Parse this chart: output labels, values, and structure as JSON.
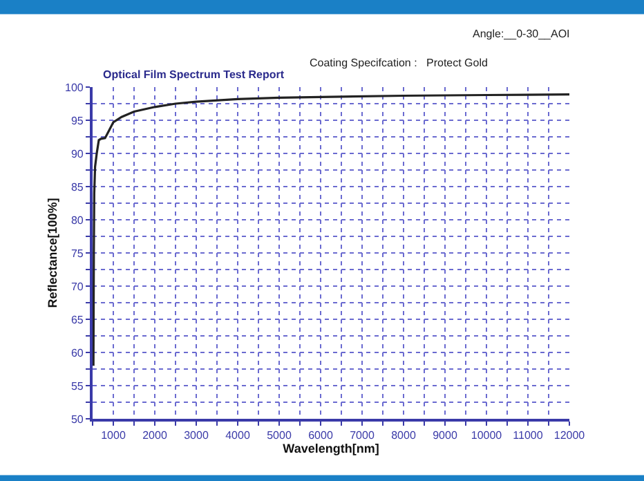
{
  "chart_data": {
    "type": "line",
    "title": "Optical Film Spectrum Test Report",
    "xlabel": "Wavelength[nm]",
    "ylabel": "Reflectance[100%]",
    "annotations": [
      "Angle:__0-30__AOI",
      "Coating Specifcation :   Protect Gold"
    ],
    "x": [
      520,
      530,
      540,
      560,
      600,
      650,
      700,
      800,
      900,
      1000,
      1200,
      1500,
      2000,
      2500,
      3000,
      4000,
      5000,
      6000,
      8000,
      10000,
      12000
    ],
    "series": [
      {
        "color": "#222222",
        "values": [
          58,
          75,
          84,
          88,
          90,
          92,
          92.2,
          92.3,
          93.5,
          94.7,
          95.5,
          96.3,
          97,
          97.5,
          97.8,
          98.2,
          98.4,
          98.5,
          98.7,
          98.8,
          98.9
        ]
      }
    ],
    "xlim": [
      500,
      12000
    ],
    "ylim": [
      50,
      100
    ],
    "xticks": [
      {
        "value": 500,
        "label": null
      },
      1000,
      {
        "value": 1500,
        "label": null
      },
      2000,
      {
        "value": 2500,
        "label": null
      },
      3000,
      {
        "value": 3500,
        "label": null
      },
      4000,
      {
        "value": 4500,
        "label": null
      },
      5000,
      {
        "value": 5500,
        "label": null
      },
      6000,
      {
        "value": 6500,
        "label": null
      },
      7000,
      {
        "value": 7500,
        "label": null
      },
      8000,
      {
        "value": 8500,
        "label": null
      },
      9000,
      {
        "value": 9500,
        "label": null
      },
      10000,
      {
        "value": 10500,
        "label": null
      },
      11000,
      {
        "value": 11500,
        "label": null
      },
      12000
    ],
    "yticks": [
      50,
      {
        "value": 52.5,
        "label": null
      },
      55,
      {
        "value": 57.5,
        "label": null
      },
      60,
      {
        "value": 62.5,
        "label": null
      },
      65,
      {
        "value": 67.5,
        "label": null
      },
      70,
      {
        "value": 72.5,
        "label": null
      },
      75,
      {
        "value": 77.5,
        "label": null
      },
      80,
      {
        "value": 82.5,
        "label": null
      },
      85,
      {
        "value": 87.5,
        "label": null
      },
      90,
      {
        "value": 92.5,
        "label": null
      },
      95,
      {
        "value": 97.5,
        "label": null
      },
      100
    ],
    "grid": true,
    "marker": "none",
    "line_style": "solid"
  }
}
